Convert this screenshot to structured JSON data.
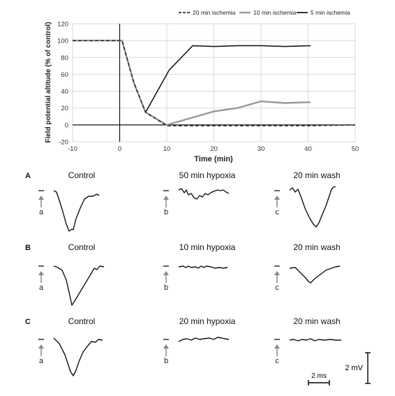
{
  "chart_data": [
    {
      "type": "line",
      "xlabel": "Time (min)",
      "ylabel": "Field potential altitude (% of control)",
      "xlim": [
        -10,
        50
      ],
      "ylim": [
        -20,
        120
      ],
      "x_ticks": [
        -10,
        0,
        10,
        20,
        30,
        40,
        50
      ],
      "y_ticks": [
        -20,
        0,
        20,
        40,
        60,
        80,
        100,
        120
      ],
      "grid": true,
      "legend_position": "top-right",
      "series": [
        {
          "name": "20 min ischemia",
          "color": "#333333",
          "style": "dashed",
          "x": [
            -10,
            0,
            0.5,
            3,
            5.5,
            10,
            15.5,
            20,
            25,
            30,
            35,
            40,
            50
          ],
          "y": [
            100,
            100,
            100,
            50,
            15,
            -1,
            -1,
            -1,
            -1,
            -1,
            -1,
            -1,
            0
          ]
        },
        {
          "name": "10 min ischemia",
          "color": "#999999",
          "style": "solid",
          "x": [
            -10,
            0,
            0.5,
            3,
            5.5,
            10,
            15,
            20,
            25,
            30,
            35,
            40.5
          ],
          "y": [
            100,
            100,
            100,
            50,
            15,
            0,
            8,
            16,
            20,
            28,
            26,
            27
          ]
        },
        {
          "name": "5 min ischemia",
          "color": "#1a1a1a",
          "style": "solid",
          "x": [
            -10,
            0,
            0.5,
            3,
            5.5,
            10.5,
            15.5,
            20,
            25,
            30,
            35,
            40.5
          ],
          "y": [
            100,
            100,
            100,
            50,
            15,
            65,
            94,
            93,
            94,
            94,
            93,
            94
          ]
        }
      ]
    }
  ],
  "traces": {
    "rows": [
      {
        "row_label": "A",
        "panels": [
          {
            "title": "Control",
            "marker": "a"
          },
          {
            "title": "50 min hypoxia",
            "marker": "b"
          },
          {
            "title": "20 min wash",
            "marker": "c"
          }
        ]
      },
      {
        "row_label": "B",
        "panels": [
          {
            "title": "Control",
            "marker": "a"
          },
          {
            "title": "10 min hypoxia",
            "marker": "b"
          },
          {
            "title": "20 min wash",
            "marker": "c"
          }
        ]
      },
      {
        "row_label": "C",
        "panels": [
          {
            "title": "Control",
            "marker": "a"
          },
          {
            "title": "20 min hypoxia",
            "marker": "b"
          },
          {
            "title": "20 min wash",
            "marker": "c"
          }
        ]
      }
    ],
    "scale_bar": {
      "voltage": "2 mV",
      "time": "2 ms"
    }
  }
}
